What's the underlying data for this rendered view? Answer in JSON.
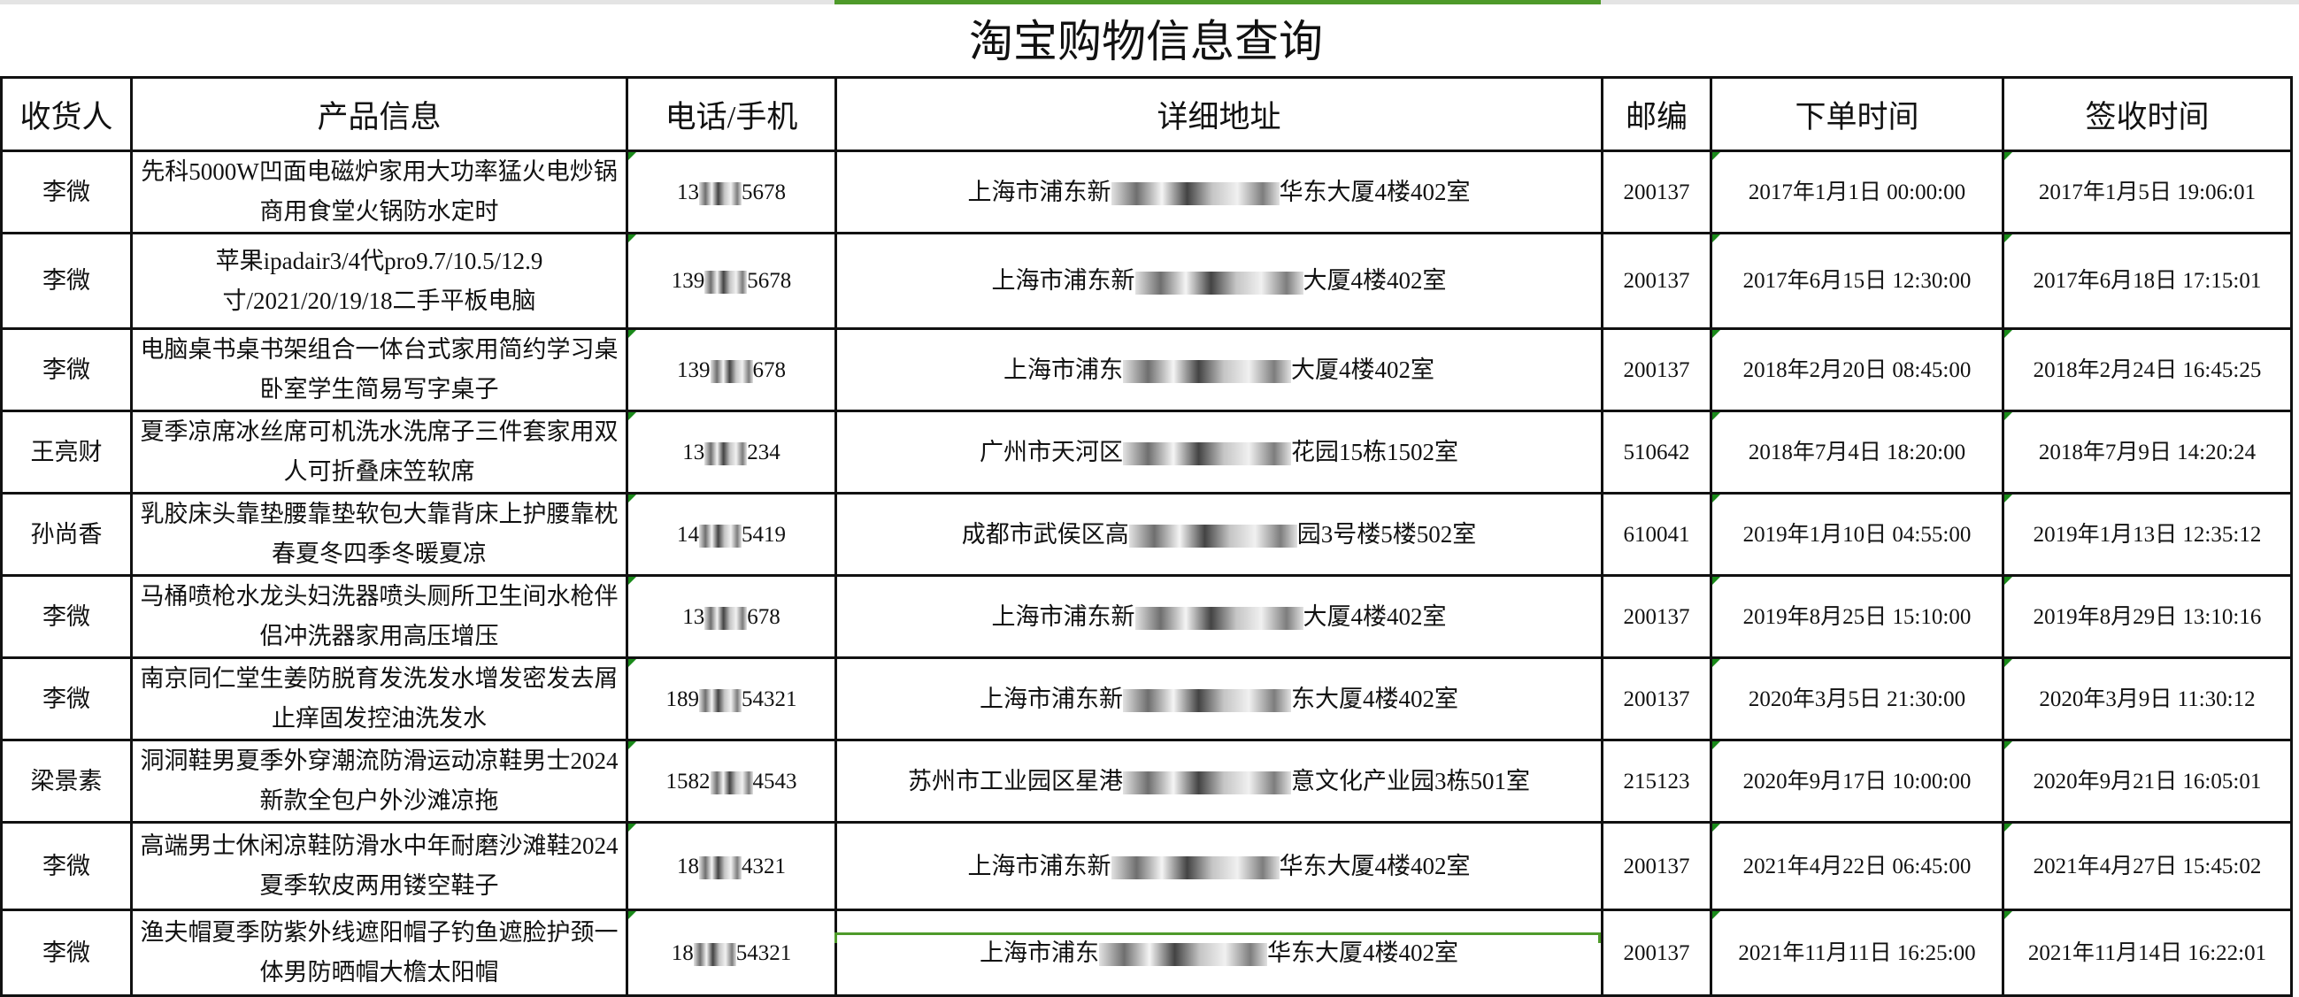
{
  "title": "淘宝购物信息查询",
  "colors": {
    "accent": "#4e9a2a",
    "comment_marker": "#1a8a1a"
  },
  "headers": [
    "收货人",
    "产品信息",
    "电话/手机",
    "详细地址",
    "邮编",
    "下单时间",
    "签收时间"
  ],
  "rows": [
    {
      "name": "李微",
      "product": "先科5000W凹面电磁炉家用大功率猛火电炒锅商用食堂火锅防水定时",
      "phone_pre": "13",
      "phone_post": "5678",
      "addr_pre": "上海市浦东新",
      "addr_post": "华东大厦4楼402室",
      "zip": "200137",
      "order_time": "2017年1月1日 00:00:00",
      "sign_time": "2017年1月5日 19:06:01"
    },
    {
      "name": "李微",
      "product": "苹果ipadair3/4代pro9.7/10.5/12.9寸/2021/20/19/18二手平板电脑",
      "phone_pre": "139",
      "phone_post": "5678",
      "addr_pre": "上海市浦东新",
      "addr_post": "大厦4楼402室",
      "zip": "200137",
      "order_time": "2017年6月15日 12:30:00",
      "sign_time": "2017年6月18日 17:15:01"
    },
    {
      "name": "李微",
      "product": "电脑桌书桌书架组合一体台式家用简约学习桌卧室学生简易写字桌子",
      "phone_pre": "139",
      "phone_post": "678",
      "addr_pre": "上海市浦东",
      "addr_post": "大厦4楼402室",
      "zip": "200137",
      "order_time": "2018年2月20日 08:45:00",
      "sign_time": "2018年2月24日 16:45:25"
    },
    {
      "name": "王亮财",
      "product": "夏季凉席冰丝席可机洗水洗席子三件套家用双人可折叠床笠软席",
      "phone_pre": "13",
      "phone_post": "234",
      "addr_pre": "广州市天河区",
      "addr_post": "花园15栋1502室",
      "zip": "510642",
      "order_time": "2018年7月4日 18:20:00",
      "sign_time": "2018年7月9日 14:20:24"
    },
    {
      "name": "孙尚香",
      "product": "乳胶床头靠垫腰靠垫软包大靠背床上护腰靠枕春夏冬四季冬暖夏凉",
      "phone_pre": "14",
      "phone_post": "5419",
      "addr_pre": "成都市武侯区高",
      "addr_post": "园3号楼5楼502室",
      "zip": "610041",
      "order_time": "2019年1月10日 04:55:00",
      "sign_time": "2019年1月13日 12:35:12"
    },
    {
      "name": "李微",
      "product": "马桶喷枪水龙头妇洗器喷头厕所卫生间水枪伴侣冲洗器家用高压增压",
      "phone_pre": "13",
      "phone_post": "678",
      "addr_pre": "上海市浦东新",
      "addr_post": "大厦4楼402室",
      "zip": "200137",
      "order_time": "2019年8月25日 15:10:00",
      "sign_time": "2019年8月29日 13:10:16"
    },
    {
      "name": "李微",
      "product": "南京同仁堂生姜防脱育发洗发水增发密发去屑止痒固发控油洗发水",
      "phone_pre": "189",
      "phone_post": "54321",
      "addr_pre": "上海市浦东新",
      "addr_post": "东大厦4楼402室",
      "zip": "200137",
      "order_time": "2020年3月5日 21:30:00",
      "sign_time": "2020年3月9日 11:30:12"
    },
    {
      "name": "梁景素",
      "product": "洞洞鞋男夏季外穿潮流防滑运动凉鞋男士2024新款全包户外沙滩凉拖",
      "phone_pre": "1582",
      "phone_post": "4543",
      "addr_pre": "苏州市工业园区星港",
      "addr_post": "意文化产业园3栋501室",
      "zip": "215123",
      "order_time": "2020年9月17日 10:00:00",
      "sign_time": "2020年9月21日 16:05:01"
    },
    {
      "name": "李微",
      "product": "高端男士休闲凉鞋防滑水中年耐磨沙滩鞋2024夏季软皮两用镂空鞋子",
      "phone_pre": "18",
      "phone_post": "4321",
      "addr_pre": "上海市浦东新",
      "addr_post": "华东大厦4楼402室",
      "zip": "200137",
      "order_time": "2021年4月22日 06:45:00",
      "sign_time": "2021年4月27日 15:45:02"
    },
    {
      "name": "李微",
      "product": "渔夫帽夏季防紫外线遮阳帽子钓鱼遮脸护颈一体男防晒帽大檐太阳帽",
      "phone_pre": "18",
      "phone_post": "54321",
      "addr_pre": "上海市浦东",
      "addr_post": "华东大厦4楼402室",
      "zip": "200137",
      "order_time": "2021年11月11日 16:25:00",
      "sign_time": "2021年11月14日 16:22:01"
    }
  ]
}
